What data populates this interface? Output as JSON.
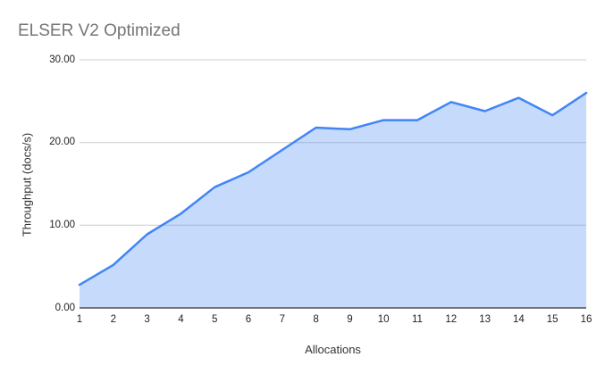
{
  "title": "ELSER V2 Optimized",
  "chart_data": {
    "type": "area",
    "title": "ELSER V2 Optimized",
    "xlabel": "Allocations",
    "ylabel": "Throughput (docs/s)",
    "categories": [
      "1",
      "2",
      "3",
      "4",
      "5",
      "6",
      "7",
      "8",
      "9",
      "10",
      "11",
      "12",
      "13",
      "14",
      "15",
      "16"
    ],
    "values": [
      2.8,
      5.2,
      8.9,
      11.4,
      14.6,
      16.4,
      19.1,
      21.8,
      21.6,
      22.7,
      22.7,
      24.9,
      23.8,
      25.4,
      23.3,
      26.0
    ],
    "ylim": [
      0,
      30
    ],
    "yticks": [
      0,
      10,
      20,
      30
    ],
    "ytick_labels": [
      "0.00",
      "10.00",
      "20.00",
      "30.00"
    ],
    "grid": true,
    "legend": "none",
    "colors": {
      "line": "#4285f4",
      "fill": "rgba(66,133,244,0.30)",
      "grid": "#cccccc",
      "axis": "#333333",
      "title": "#757575",
      "tick_text": "#222222"
    }
  }
}
